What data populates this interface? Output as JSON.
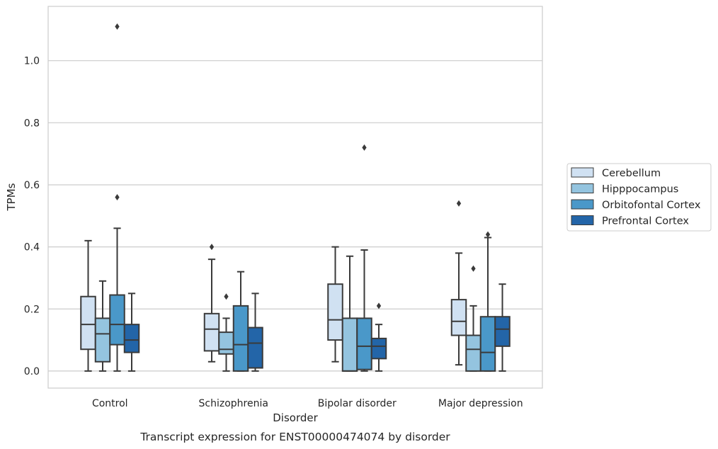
{
  "chart_data": {
    "type": "boxplot",
    "title": "Transcript expression for ENST00000474074 by disorder",
    "xlabel": "Disorder",
    "ylabel": "TPMs",
    "ylim": [
      -0.055,
      1.175
    ],
    "yticks": [
      "0.0",
      "0.2",
      "0.4",
      "0.6",
      "0.8",
      "1.0"
    ],
    "grid": true,
    "legend_position": "right",
    "categories": [
      "Control",
      "Schizophrenia",
      "Bipolar disorder",
      "Major depression"
    ],
    "series": [
      {
        "name": "Cerebellum",
        "color": "#d0e1f2",
        "boxes": [
          {
            "whislo": 0.0,
            "q1": 0.07,
            "med": 0.15,
            "q3": 0.24,
            "whishi": 0.42,
            "fliers": []
          },
          {
            "whislo": 0.03,
            "q1": 0.065,
            "med": 0.135,
            "q3": 0.185,
            "whishi": 0.36,
            "fliers": [
              0.4
            ]
          },
          {
            "whislo": 0.03,
            "q1": 0.1,
            "med": 0.165,
            "q3": 0.28,
            "whishi": 0.4,
            "fliers": []
          },
          {
            "whislo": 0.02,
            "q1": 0.115,
            "med": 0.16,
            "q3": 0.23,
            "whishi": 0.38,
            "fliers": [
              0.54
            ]
          }
        ]
      },
      {
        "name": "Hipppocampus",
        "color": "#94c4df",
        "boxes": [
          {
            "whislo": 0.0,
            "q1": 0.03,
            "med": 0.12,
            "q3": 0.17,
            "whishi": 0.29,
            "fliers": []
          },
          {
            "whislo": 0.0,
            "q1": 0.055,
            "med": 0.07,
            "q3": 0.125,
            "whishi": 0.17,
            "fliers": [
              0.24
            ]
          },
          {
            "whislo": 0.0,
            "q1": 0.0,
            "med": 0.0,
            "q3": 0.17,
            "whishi": 0.37,
            "fliers": []
          },
          {
            "whislo": 0.0,
            "q1": 0.0,
            "med": 0.07,
            "q3": 0.115,
            "whishi": 0.21,
            "fliers": [
              0.33
            ]
          }
        ]
      },
      {
        "name": "Orbitofontal Cortex",
        "color": "#4a98c9",
        "boxes": [
          {
            "whislo": 0.0,
            "q1": 0.085,
            "med": 0.15,
            "q3": 0.245,
            "whishi": 0.46,
            "fliers": [
              0.56,
              1.11
            ]
          },
          {
            "whislo": 0.0,
            "q1": 0.0,
            "med": 0.085,
            "q3": 0.21,
            "whishi": 0.32,
            "fliers": []
          },
          {
            "whislo": 0.0,
            "q1": 0.005,
            "med": 0.08,
            "q3": 0.17,
            "whishi": 0.39,
            "fliers": [
              0.72
            ]
          },
          {
            "whislo": 0.0,
            "q1": 0.0,
            "med": 0.06,
            "q3": 0.175,
            "whishi": 0.43,
            "fliers": [
              0.44
            ]
          }
        ]
      },
      {
        "name": "Prefrontal Cortex",
        "color": "#2365a8",
        "boxes": [
          {
            "whislo": 0.0,
            "q1": 0.06,
            "med": 0.1,
            "q3": 0.15,
            "whishi": 0.25,
            "fliers": []
          },
          {
            "whislo": 0.0,
            "q1": 0.01,
            "med": 0.09,
            "q3": 0.14,
            "whishi": 0.25,
            "fliers": []
          },
          {
            "whislo": 0.0,
            "q1": 0.04,
            "med": 0.08,
            "q3": 0.105,
            "whishi": 0.15,
            "fliers": [
              0.21
            ]
          },
          {
            "whislo": 0.0,
            "q1": 0.08,
            "med": 0.135,
            "q3": 0.175,
            "whishi": 0.28,
            "fliers": []
          }
        ]
      }
    ]
  }
}
